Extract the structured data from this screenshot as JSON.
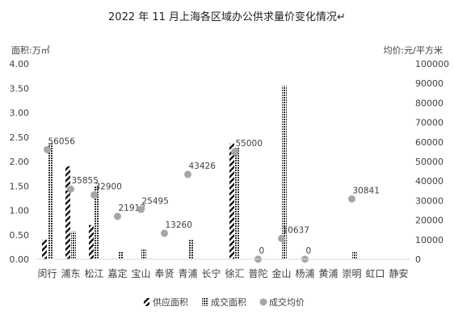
{
  "chart_data": {
    "type": "bar",
    "title": "2022 年 11 月上海各区域办公供求量价变化情况↵",
    "ylabel_left": "面积:万㎡",
    "ylabel_right": "均价:元/平方米",
    "ylim_left": [
      0,
      4.0
    ],
    "ylim_right": [
      0,
      100000
    ],
    "left_ticks": [
      "4.00",
      "3.50",
      "3.00",
      "2.50",
      "2.00",
      "1.50",
      "1.00",
      "0.50",
      "0.00"
    ],
    "right_ticks": [
      "100000",
      "90000",
      "80000",
      "70000",
      "60000",
      "50000",
      "40000",
      "30000",
      "20000",
      "10000",
      "0"
    ],
    "categories": [
      "闵行",
      "浦东",
      "松江",
      "嘉定",
      "宝山",
      "奉贤",
      "青浦",
      "长宁",
      "徐汇",
      "普陀",
      "金山",
      "杨浦",
      "黄浦",
      "崇明",
      "虹口",
      "静安"
    ],
    "series": [
      {
        "name": "供应面积",
        "kind": "bar",
        "pattern": "diagonal",
        "axis": "left",
        "values": [
          0.4,
          1.9,
          0.7,
          0,
          0,
          0,
          0,
          0,
          2.37,
          0,
          0,
          0,
          0,
          0,
          0,
          0
        ]
      },
      {
        "name": "成交面积",
        "kind": "bar",
        "pattern": "dots",
        "axis": "left",
        "values": [
          2.37,
          0.57,
          1.5,
          0.15,
          0.2,
          0,
          0.4,
          0,
          2.28,
          0,
          3.55,
          0,
          0,
          0.15,
          0,
          0
        ]
      },
      {
        "name": "成交均价",
        "kind": "scatter",
        "axis": "right",
        "values": [
          56056,
          35855,
          32900,
          21913,
          25495,
          13260,
          43426,
          null,
          55000,
          0,
          10637,
          0,
          null,
          30841,
          null,
          null
        ],
        "labels": [
          "56056",
          "35855",
          "32900",
          "21913",
          "25495",
          "13260",
          "43426",
          "",
          "55000",
          "0",
          "10637",
          "0",
          "",
          "30841",
          "",
          ""
        ]
      }
    ],
    "legend_position": "bottom",
    "grid": false,
    "colors": {
      "supply": "#000000",
      "deal": "#555555",
      "price": "#a6a6a6"
    }
  }
}
